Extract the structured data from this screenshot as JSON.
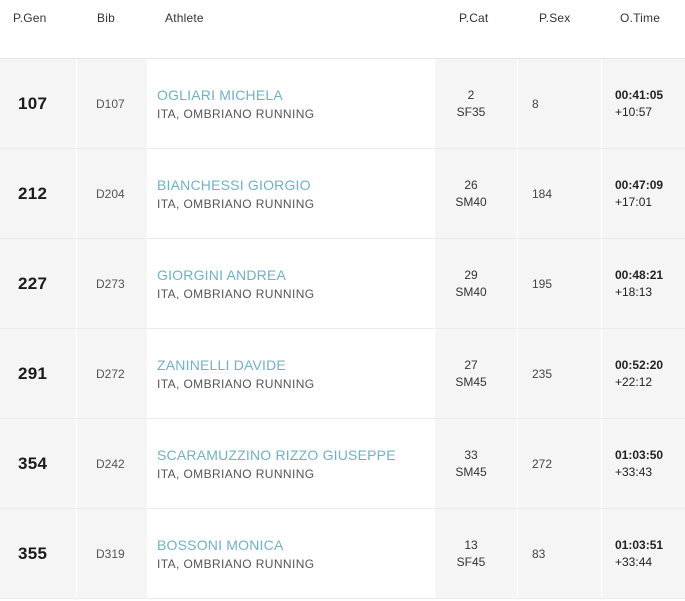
{
  "header": {
    "gen": "P.Gen",
    "bib": "Bib",
    "athlete": "Athlete",
    "cat": "P.Cat",
    "sex": "P.Sex",
    "time": "O.Time"
  },
  "rows": [
    {
      "gen": "107",
      "bib": "D107",
      "name": "OGLIARI MICHELA",
      "team": "ITA, OMBRIANO RUNNING",
      "cat_pos": "2",
      "cat": "SF35",
      "sex": "8",
      "time": "00:41:05",
      "gap": "+10:57"
    },
    {
      "gen": "212",
      "bib": "D204",
      "name": "BIANCHESSI GIORGIO",
      "team": "ITA, OMBRIANO RUNNING",
      "cat_pos": "26",
      "cat": "SM40",
      "sex": "184",
      "time": "00:47:09",
      "gap": "+17:01"
    },
    {
      "gen": "227",
      "bib": "D273",
      "name": "GIORGINI ANDREA",
      "team": "ITA, OMBRIANO RUNNING",
      "cat_pos": "29",
      "cat": "SM40",
      "sex": "195",
      "time": "00:48:21",
      "gap": "+18:13"
    },
    {
      "gen": "291",
      "bib": "D272",
      "name": "ZANINELLI DAVIDE",
      "team": "ITA, OMBRIANO RUNNING",
      "cat_pos": "27",
      "cat": "SM45",
      "sex": "235",
      "time": "00:52:20",
      "gap": "+22:12"
    },
    {
      "gen": "354",
      "bib": "D242",
      "name": "SCARAMUZZINO RIZZO GIUSEPPE",
      "team": "ITA, OMBRIANO RUNNING",
      "cat_pos": "33",
      "cat": "SM45",
      "sex": "272",
      "time": "01:03:50",
      "gap": "+33:43"
    },
    {
      "gen": "355",
      "bib": "D319",
      "name": "BOSSONI MONICA",
      "team": "ITA, OMBRIANO RUNNING",
      "cat_pos": "13",
      "cat": "SF45",
      "sex": "83",
      "time": "01:03:51",
      "gap": "+33:44"
    }
  ],
  "colors": {
    "athlete_link": "#6fb1c9",
    "row_shade": "#f5f5f5"
  }
}
